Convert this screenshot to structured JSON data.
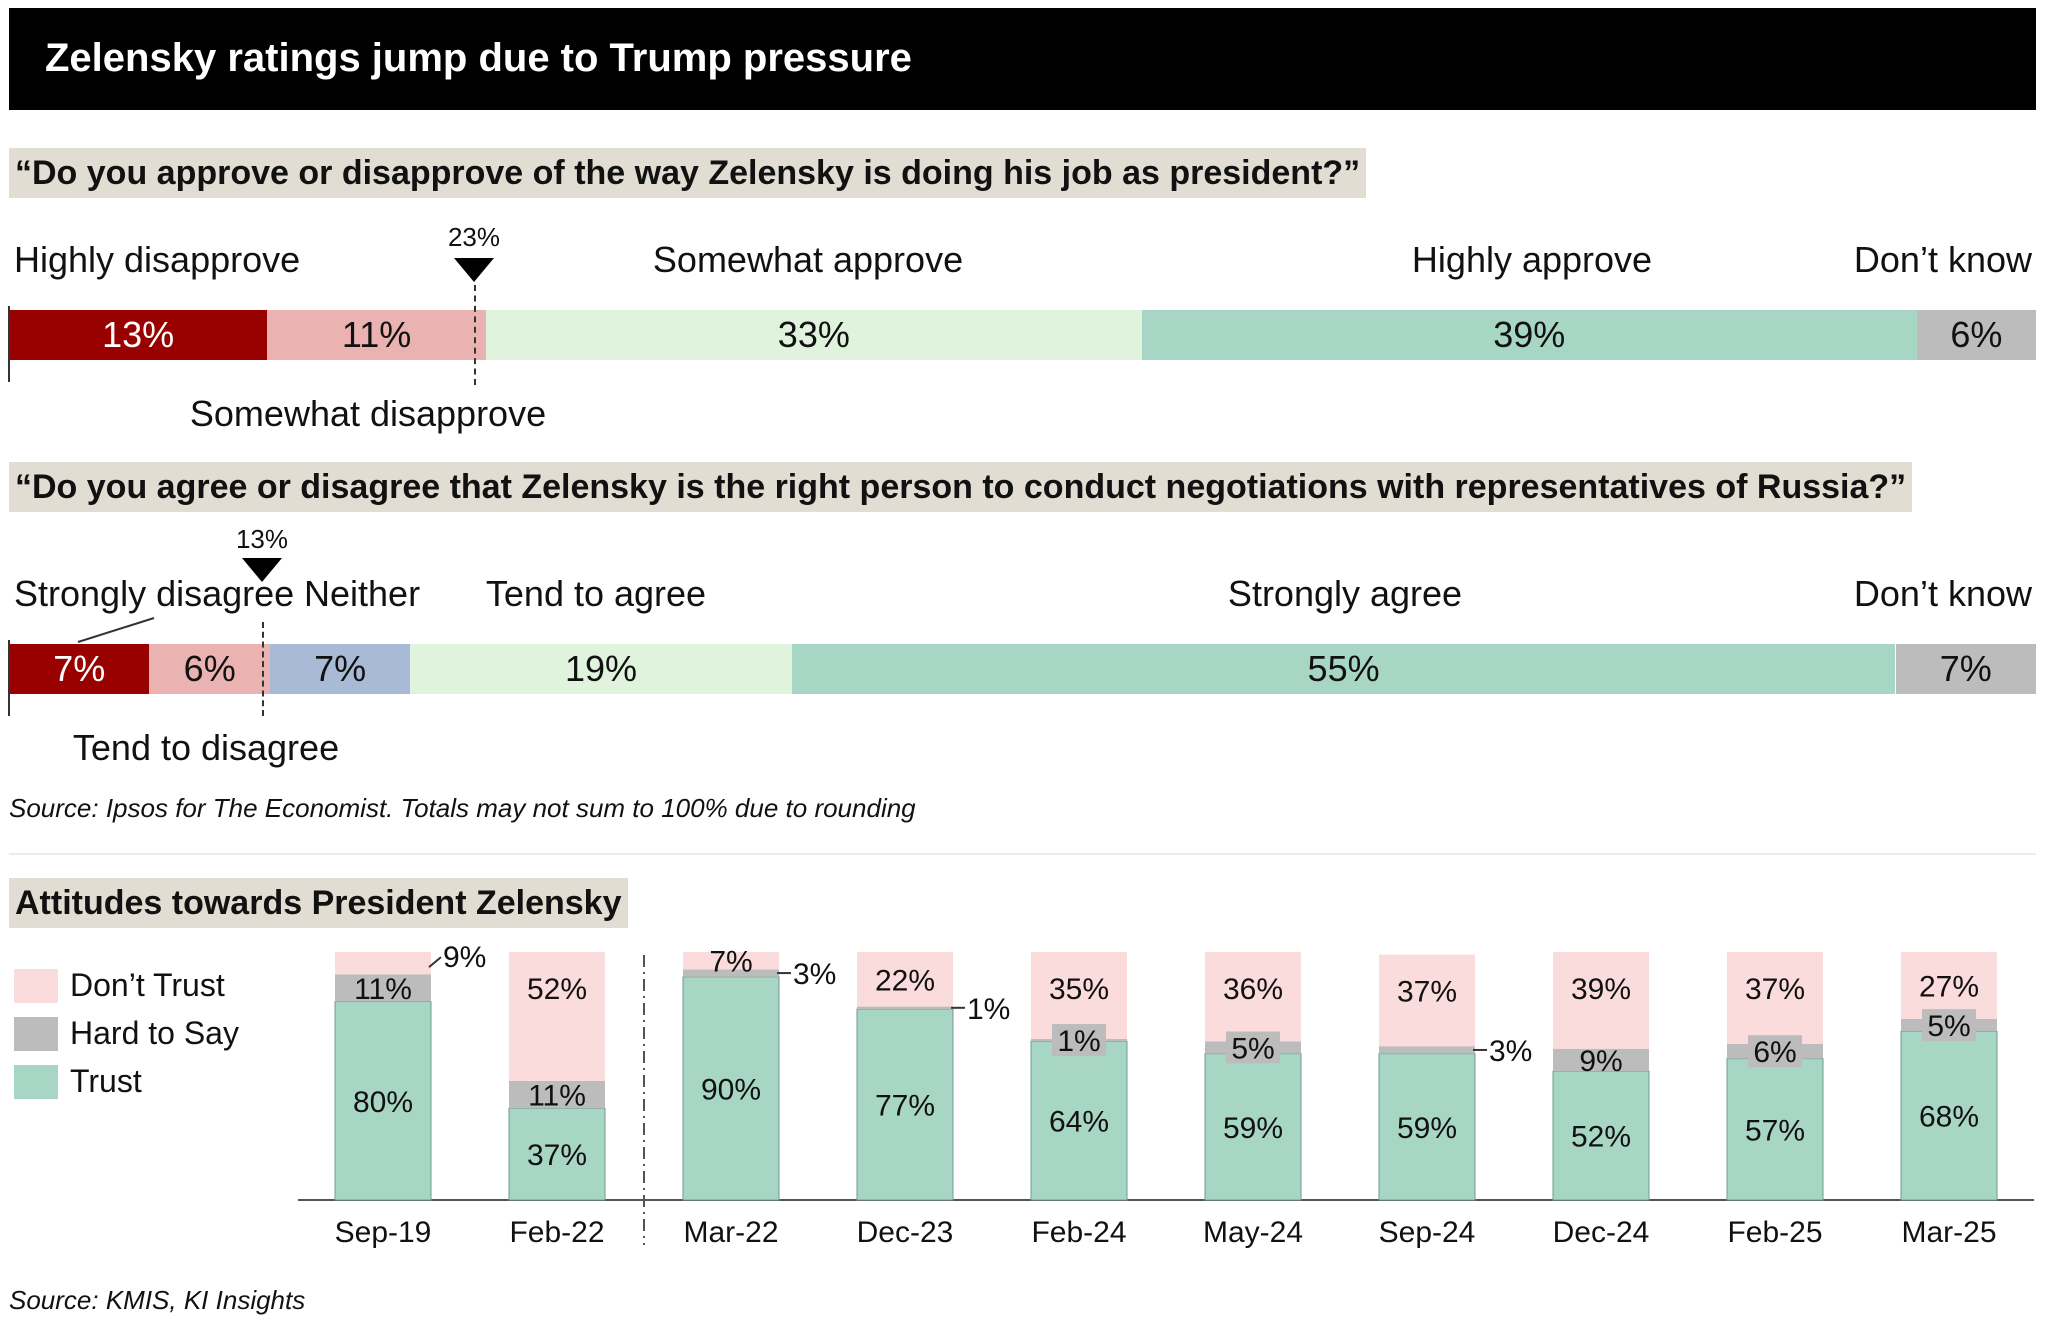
{
  "title": "Zelensky ratings jump due to Trump pressure",
  "colors": {
    "highly_disapprove": "#990000",
    "somewhat_disapprove": "#eab3b1",
    "neither": "#a9bad6",
    "somewhat_approve": "#dff3dd",
    "highly_approve": "#a8d6c4",
    "dont_know": "#bcbcbc",
    "dont_trust": "#fbdcdc",
    "hard_to_say": "#bcbcbc",
    "trust": "#a8d6c4",
    "header_bg": "#000000",
    "question_bg": "#e2ddd2"
  },
  "q1": {
    "question": "“Do you approve or disapprove of the way Zelensky is doing his job as president?”",
    "marker_label": "23%",
    "labels": {
      "highly_disapprove": "Highly disapprove",
      "somewhat_disapprove": "Somewhat disapprove",
      "somewhat_approve": "Somewhat approve",
      "highly_approve": "Highly approve",
      "dont_know": "Don’t know"
    },
    "segments": [
      {
        "name": "Highly disapprove",
        "value": 13,
        "label": "13%"
      },
      {
        "name": "Somewhat disapprove",
        "value": 11,
        "label": "11%"
      },
      {
        "name": "Somewhat approve",
        "value": 33,
        "label": "33%"
      },
      {
        "name": "Highly approve",
        "value": 39,
        "label": "39%"
      },
      {
        "name": "Don’t know",
        "value": 6,
        "label": "6%"
      }
    ]
  },
  "q2": {
    "question": "“Do you agree or disagree that Zelensky is the right person to conduct negotiations with representatives of Russia?”",
    "marker_label": "13%",
    "labels": {
      "strongly_disagree": "Strongly disagree",
      "neither": "Neither",
      "tend_to_agree": "Tend to agree",
      "strongly_agree": "Strongly agree",
      "dont_know": "Don’t know",
      "tend_to_disagree": "Tend to disagree"
    },
    "segments": [
      {
        "name": "Strongly disagree",
        "value": 7,
        "label": "7%"
      },
      {
        "name": "Tend to disagree",
        "value": 6,
        "label": "6%"
      },
      {
        "name": "Neither",
        "value": 7,
        "label": "7%"
      },
      {
        "name": "Tend to agree",
        "value": 19,
        "label": "19%"
      },
      {
        "name": "Strongly agree",
        "value": 55,
        "label": "55%"
      },
      {
        "name": "Don’t know",
        "value": 7,
        "label": "7%"
      }
    ]
  },
  "source1": "Source: Ipsos for The Economist. Totals may not sum to 100% due to rounding",
  "section2_title": "Attitudes towards President Zelensky",
  "legend": {
    "dont_trust": "Don’t Trust",
    "hard_to_say": "Hard to Say",
    "trust": "Trust"
  },
  "source2": "Source: KMIS, KI Insights",
  "chart_data": [
    {
      "type": "bar",
      "title": "“Do you approve or disapprove of the way Zelensky is doing his job as president?”",
      "categories": [
        "Highly disapprove",
        "Somewhat disapprove",
        "Somewhat approve",
        "Highly approve",
        "Don’t know"
      ],
      "values": [
        13,
        11,
        33,
        39,
        6
      ],
      "annotation": "23%"
    },
    {
      "type": "bar",
      "title": "“Do you agree or disagree that Zelensky is the right person to conduct negotiations with representatives of Russia?”",
      "categories": [
        "Strongly disagree",
        "Tend to disagree",
        "Neither",
        "Tend to agree",
        "Strongly agree",
        "Don’t know"
      ],
      "values": [
        7,
        6,
        7,
        19,
        55,
        7
      ],
      "annotation": "13%"
    },
    {
      "type": "bar",
      "title": "Attitudes towards President Zelensky",
      "categories": [
        "Sep-19",
        "Feb-22",
        "Mar-22",
        "Dec-23",
        "Feb-24",
        "May-24",
        "Sep-24",
        "Dec-24",
        "Feb-25",
        "Mar-25"
      ],
      "series": [
        {
          "name": "Trust",
          "values": [
            80,
            37,
            90,
            77,
            64,
            59,
            59,
            52,
            57,
            68
          ]
        },
        {
          "name": "Hard to Say",
          "values": [
            11,
            11,
            3,
            1,
            1,
            5,
            3,
            9,
            6,
            5
          ]
        },
        {
          "name": "Don’t Trust",
          "values": [
            9,
            52,
            7,
            22,
            35,
            36,
            37,
            39,
            37,
            27
          ]
        }
      ],
      "ylim": [
        0,
        100
      ]
    }
  ]
}
